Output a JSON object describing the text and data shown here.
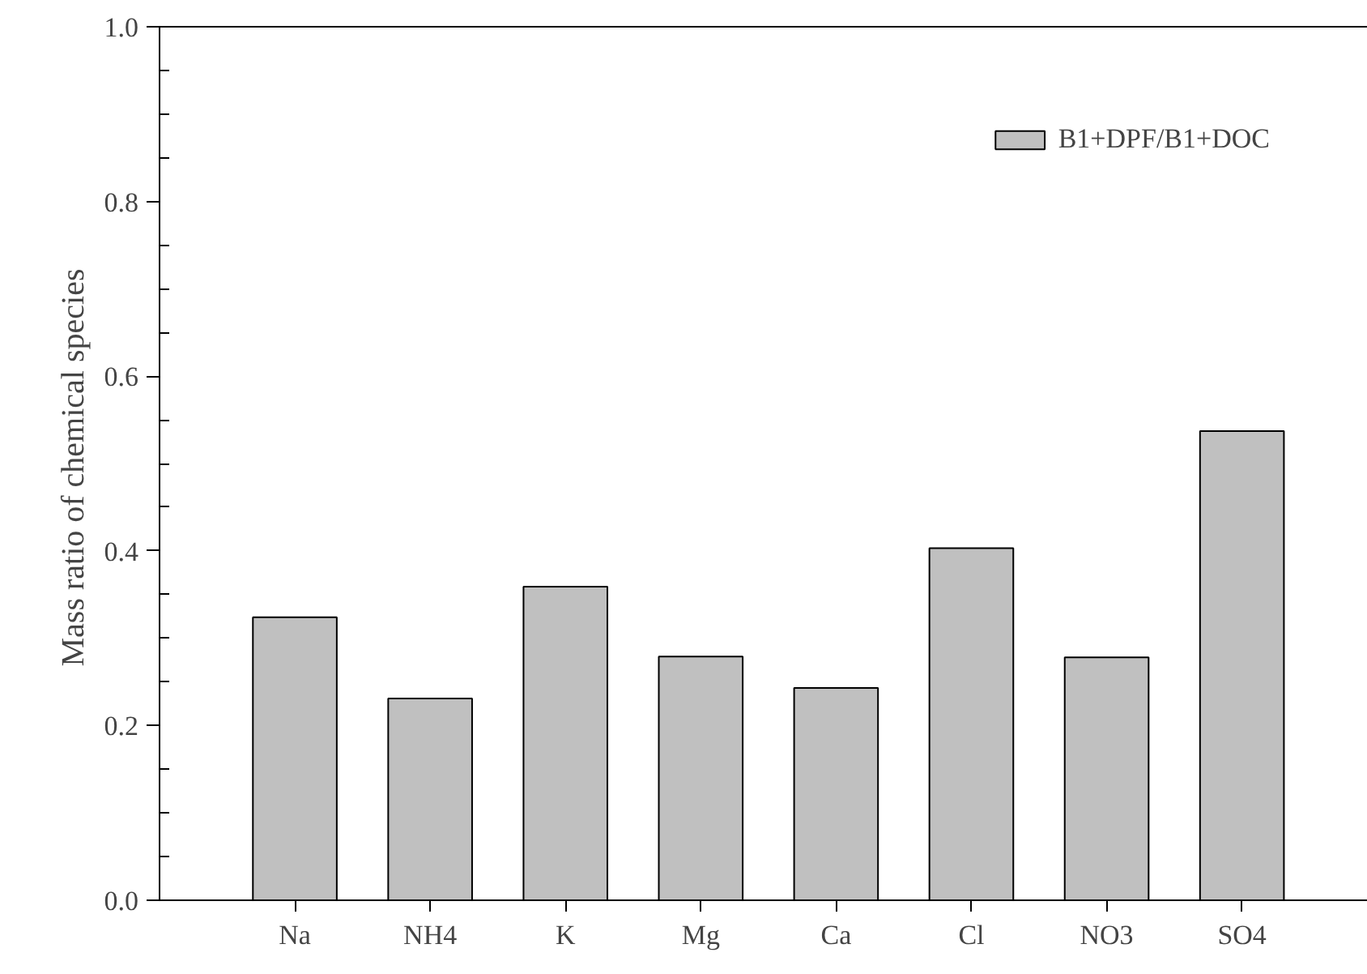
{
  "chart_data": {
    "type": "bar",
    "ylabel": "Mass ratio of  chemical species",
    "categories": [
      "Na",
      "NH4",
      "K",
      "Mg",
      "Ca",
      "Cl",
      "NO3",
      "SO4"
    ],
    "series": [
      {
        "name": "B1+DPF/B1+DOC",
        "color": "#c0c0c0",
        "values": [
          0.324,
          0.231,
          0.359,
          0.279,
          0.243,
          0.403,
          0.278,
          0.537
        ]
      }
    ],
    "ylim": [
      0,
      1.0
    ],
    "yticks": [
      {
        "value": 0,
        "label": "0.0"
      },
      {
        "value": 0.05,
        "label": null
      },
      {
        "value": 0.1,
        "label": null
      },
      {
        "value": 0.15,
        "label": null
      },
      {
        "value": 0.2,
        "label": "0.2"
      },
      {
        "value": 0.25,
        "label": null
      },
      {
        "value": 0.3,
        "label": null
      },
      {
        "value": 0.35,
        "label": null
      },
      {
        "value": 0.4,
        "label": "0.4"
      },
      {
        "value": 0.45,
        "label": null
      },
      {
        "value": 0.5,
        "label": null
      },
      {
        "value": 0.55,
        "label": null
      },
      {
        "value": 0.6,
        "label": "0.6"
      },
      {
        "value": 0.65,
        "label": null
      },
      {
        "value": 0.7,
        "label": null
      },
      {
        "value": 0.75,
        "label": null
      },
      {
        "value": 0.8,
        "label": "0.8"
      },
      {
        "value": 0.85,
        "label": null
      },
      {
        "value": 0.9,
        "label": null
      },
      {
        "value": 0.95,
        "label": null
      },
      {
        "value": 1.0,
        "label": "1.0"
      }
    ],
    "grid": false,
    "legend": "top right"
  }
}
